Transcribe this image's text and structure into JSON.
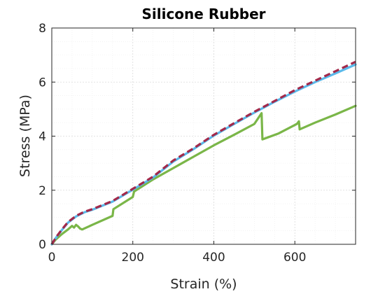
{
  "chart_data": {
    "type": "line",
    "title": "Silicone Rubber",
    "xlabel": "Strain (%)",
    "ylabel": "Stress (MPa)",
    "xlim": [
      0,
      750
    ],
    "ylim": [
      0,
      8
    ],
    "xticks": [
      0,
      200,
      400,
      600
    ],
    "yticks": [
      0,
      2,
      4,
      6,
      8
    ],
    "grid": true,
    "series": [
      {
        "color": "#7ab648",
        "style": "solid",
        "points": [
          [
            0,
            0
          ],
          [
            10,
            0.18
          ],
          [
            25,
            0.38
          ],
          [
            40,
            0.55
          ],
          [
            50,
            0.68
          ],
          [
            55,
            0.62
          ],
          [
            60,
            0.72
          ],
          [
            65,
            0.66
          ],
          [
            70,
            0.58
          ],
          [
            75,
            0.55
          ],
          [
            100,
            0.72
          ],
          [
            150,
            1.05
          ],
          [
            152,
            1.3
          ],
          [
            200,
            1.75
          ],
          [
            203,
            1.95
          ],
          [
            250,
            2.4
          ],
          [
            300,
            2.82
          ],
          [
            350,
            3.24
          ],
          [
            400,
            3.66
          ],
          [
            450,
            4.05
          ],
          [
            500,
            4.45
          ],
          [
            518,
            4.85
          ],
          [
            520,
            3.88
          ],
          [
            560,
            4.1
          ],
          [
            605,
            4.45
          ],
          [
            610,
            4.55
          ],
          [
            612,
            4.25
          ],
          [
            650,
            4.5
          ],
          [
            700,
            4.8
          ],
          [
            750,
            5.12
          ]
        ]
      },
      {
        "color": "#a3294a",
        "style": "dashed",
        "points": [
          [
            0,
            0
          ],
          [
            10,
            0.25
          ],
          [
            25,
            0.55
          ],
          [
            40,
            0.82
          ],
          [
            60,
            1.05
          ],
          [
            80,
            1.2
          ],
          [
            100,
            1.3
          ],
          [
            150,
            1.6
          ],
          [
            200,
            2.05
          ],
          [
            250,
            2.5
          ],
          [
            300,
            3.1
          ],
          [
            350,
            3.55
          ],
          [
            400,
            4.05
          ],
          [
            450,
            4.48
          ],
          [
            500,
            4.9
          ],
          [
            550,
            5.3
          ],
          [
            600,
            5.7
          ],
          [
            650,
            6.05
          ],
          [
            700,
            6.4
          ],
          [
            750,
            6.75
          ]
        ]
      },
      {
        "color": "#5ab9ea",
        "style": "solid",
        "points": [
          [
            0,
            0
          ],
          [
            10,
            0.24
          ],
          [
            25,
            0.53
          ],
          [
            40,
            0.8
          ],
          [
            60,
            1.03
          ],
          [
            80,
            1.18
          ],
          [
            100,
            1.28
          ],
          [
            150,
            1.58
          ],
          [
            200,
            2.02
          ],
          [
            250,
            2.47
          ],
          [
            300,
            3.06
          ],
          [
            350,
            3.52
          ],
          [
            400,
            4.02
          ],
          [
            450,
            4.45
          ],
          [
            500,
            4.87
          ],
          [
            550,
            5.27
          ],
          [
            600,
            5.65
          ],
          [
            650,
            6.0
          ],
          [
            700,
            6.32
          ],
          [
            750,
            6.65
          ]
        ]
      }
    ]
  }
}
